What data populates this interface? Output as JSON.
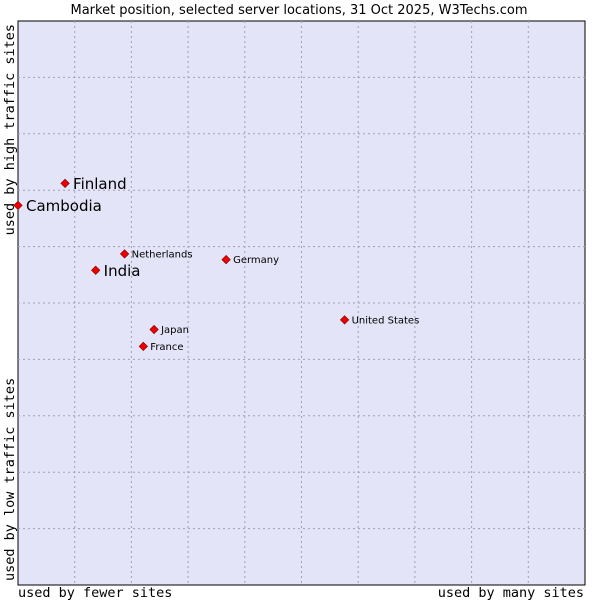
{
  "chart_data": {
    "type": "scatter",
    "title": "Market position, selected server locations, 31 Oct 2025, W3Techs.com",
    "xlabel_low": "used by fewer sites",
    "xlabel_high": "used by many sites",
    "ylabel_low": "used by low traffic sites",
    "ylabel_high": "used by high traffic sites",
    "xlim": [
      0,
      10
    ],
    "ylim": [
      0,
      10
    ],
    "grid": true,
    "points": [
      {
        "name": "Finland",
        "x": 0.83,
        "y": 7.12,
        "highlight": true
      },
      {
        "name": "Cambodia",
        "x": 0.0,
        "y": 6.73,
        "highlight": true
      },
      {
        "name": "Netherlands",
        "x": 1.88,
        "y": 5.87,
        "highlight": false
      },
      {
        "name": "India",
        "x": 1.37,
        "y": 5.58,
        "highlight": true
      },
      {
        "name": "Germany",
        "x": 3.67,
        "y": 5.77,
        "highlight": false
      },
      {
        "name": "United States",
        "x": 5.76,
        "y": 4.7,
        "highlight": false
      },
      {
        "name": "Japan",
        "x": 2.4,
        "y": 4.53,
        "highlight": false
      },
      {
        "name": "France",
        "x": 2.21,
        "y": 4.23,
        "highlight": false
      }
    ]
  },
  "colors": {
    "plot_background": "#e4e4f8",
    "grid": "#a0a0b4",
    "marker": "#ee0000"
  }
}
